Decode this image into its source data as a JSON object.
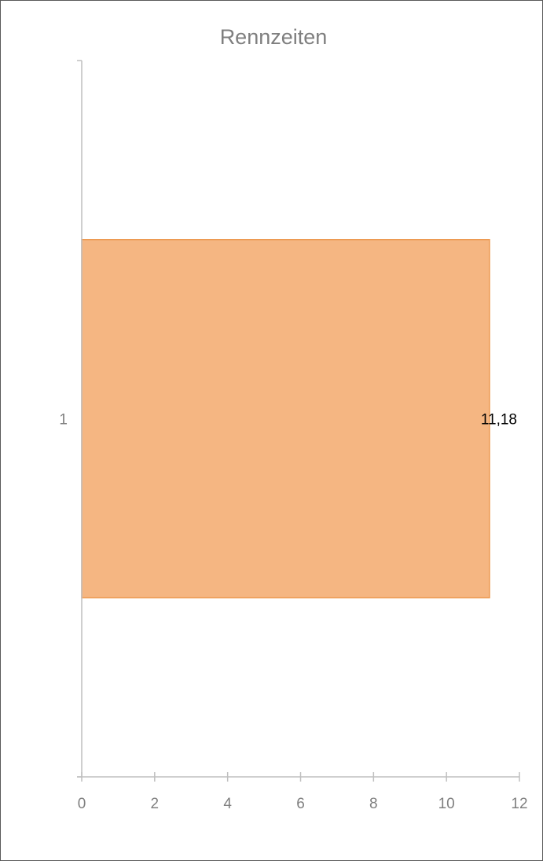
{
  "chart_data": {
    "type": "bar",
    "orientation": "horizontal",
    "title": "Rennzeiten",
    "categories": [
      "1"
    ],
    "series": [
      {
        "values": [
          11.18
        ],
        "labels": [
          "11,18"
        ]
      }
    ],
    "xlim": [
      0,
      12
    ],
    "x_ticks": [
      0,
      2,
      4,
      6,
      8,
      10,
      12
    ],
    "x_tick_labels": [
      "0",
      "2",
      "4",
      "6",
      "8",
      "10",
      "12"
    ],
    "xlabel": "",
    "ylabel": "",
    "grid": false,
    "legend": "none",
    "colors": {
      "bar_fill": "#f5b682",
      "bar_stroke": "#ed9a52",
      "axis": "#bfbfbf",
      "tick_text": "#7f7f7f"
    }
  }
}
